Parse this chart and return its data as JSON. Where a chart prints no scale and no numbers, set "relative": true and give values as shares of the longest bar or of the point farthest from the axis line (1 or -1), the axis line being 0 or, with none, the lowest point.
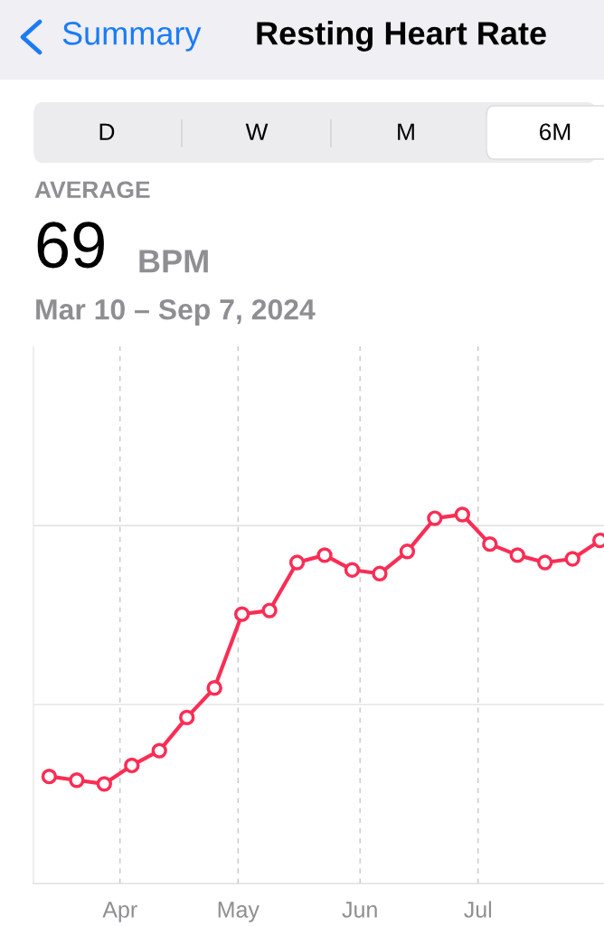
{
  "chart_data": {
    "type": "line",
    "title": "Resting Heart Rate",
    "subtitle": "Mar 10 – Sep 7, 2024",
    "annotations": [
      "Summary",
      "D",
      "W",
      "M",
      "6M",
      "AVERAGE",
      "69",
      "BPM"
    ],
    "relative": true,
    "tick_labels": "x",
    "grid": "x",
    "ref_lines": [
      {
        "axis": "y",
        "value": 0.485,
        "color": "#e0e0e4"
      },
      {
        "axis": "y",
        "value": 0.97,
        "color": "#e0e0e4"
      }
    ],
    "marker": "circle",
    "line_style": "solid",
    "xlim": [
      "2024-03-10",
      "2024-08-02"
    ],
    "xticks": [
      {
        "value": "2024-04-01",
        "label": "Apr"
      },
      {
        "value": "2024-05-01",
        "label": "May"
      },
      {
        "value": "2024-06-01",
        "label": "Jun"
      },
      {
        "value": "2024-07-01",
        "label": "Jul"
      }
    ],
    "x": [
      "2024-03-14",
      "2024-03-21",
      "2024-03-28",
      "2024-04-04",
      "2024-04-11",
      "2024-04-18",
      "2024-04-25",
      "2024-05-02",
      "2024-05-09",
      "2024-05-16",
      "2024-05-23",
      "2024-05-30",
      "2024-06-06",
      "2024-06-13",
      "2024-06-20",
      "2024-06-27",
      "2024-07-04",
      "2024-07-11",
      "2024-07-18",
      "2024-07-25",
      "2024-08-01"
    ],
    "series": [
      {
        "color": "#fa2d55",
        "values": [
          0.29,
          0.28,
          0.27,
          0.32,
          0.36,
          0.45,
          0.53,
          0.73,
          0.74,
          0.87,
          0.89,
          0.85,
          0.84,
          0.9,
          0.99,
          1.0,
          0.92,
          0.89,
          0.87,
          0.88,
          0.93
        ]
      }
    ]
  }
}
